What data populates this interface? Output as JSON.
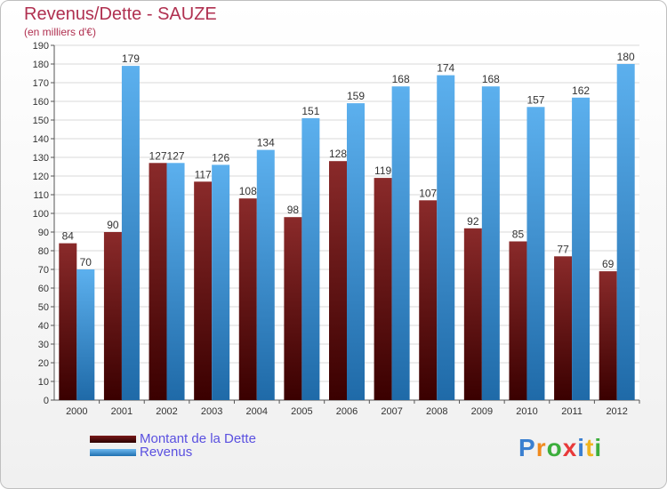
{
  "chart_data": {
    "type": "bar",
    "title": "Revenus/Dette - SAUZE",
    "subtitle": "(en milliers d'€)",
    "categories": [
      "2000",
      "2001",
      "2002",
      "2003",
      "2004",
      "2005",
      "2006",
      "2007",
      "2008",
      "2009",
      "2010",
      "2011",
      "2012"
    ],
    "series": [
      {
        "name": "Montant de la Dette",
        "color": "#7a1a1a",
        "values": [
          84,
          90,
          127,
          117,
          108,
          98,
          128,
          119,
          107,
          92,
          85,
          77,
          69
        ]
      },
      {
        "name": "Revenus",
        "color": "#4aa3e6",
        "values": [
          70,
          179,
          127,
          126,
          134,
          151,
          159,
          168,
          174,
          168,
          157,
          162,
          180
        ]
      }
    ],
    "ylim": [
      0,
      190
    ],
    "ytick_step": 10,
    "grid": true,
    "legend_position": "bottom-left"
  },
  "logo": {
    "letters": [
      "P",
      "r",
      "o",
      "x",
      "i",
      "t",
      "i"
    ],
    "colors": [
      "#3a7fd0",
      "#f08a1e",
      "#3cae3c",
      "#e83a3a",
      "#3a7fd0",
      "#f0b41e",
      "#3cae3c"
    ]
  }
}
